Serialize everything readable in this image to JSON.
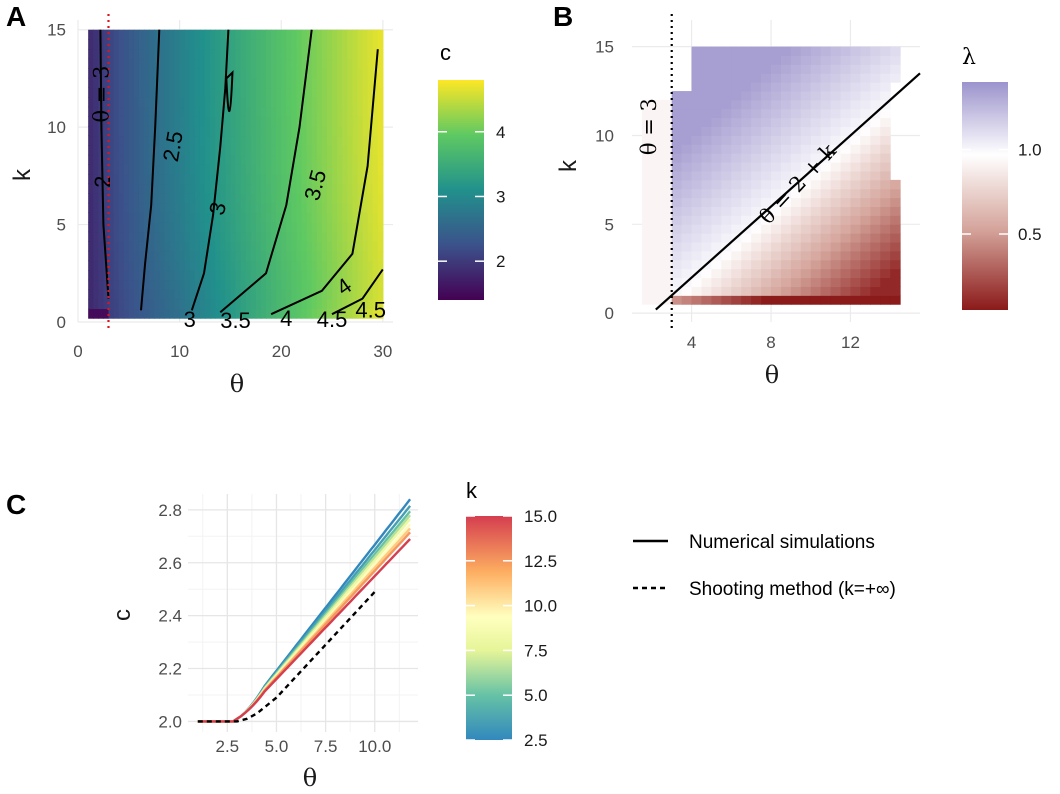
{
  "chart_data": [
    {
      "panel": "A",
      "type": "heatmap",
      "xlabel": "θ",
      "ylabel": "k",
      "xlim": [
        0,
        31
      ],
      "ylim": [
        0,
        15.5
      ],
      "xticks": [
        "0",
        "10",
        "20",
        "30"
      ],
      "xtick_values": [
        0,
        10,
        20,
        30
      ],
      "yticks": [
        "0",
        "5",
        "10",
        "15"
      ],
      "ytick_values": [
        0,
        5,
        10,
        15
      ],
      "theta_range": [
        1,
        30
      ],
      "k_range": [
        0.2,
        15
      ],
      "legend": {
        "title": "c",
        "ticks": [
          "2",
          "3",
          "4"
        ],
        "tick_values": [
          2,
          3,
          4
        ],
        "range": [
          1.4,
          4.8
        ],
        "palette": "viridis"
      },
      "reference_line": {
        "label": "θ = 3",
        "x": 3,
        "color": "#e0141f"
      },
      "contours": [
        {
          "level": 2,
          "label": "2",
          "points": [
            [
              3,
              1.2
            ],
            [
              2.5,
              5
            ],
            [
              2.3,
              10
            ],
            [
              2.2,
              15
            ]
          ]
        },
        {
          "level": 2.5,
          "label": "2.5",
          "points": [
            [
              6.2,
              0.6
            ],
            [
              6.6,
              3
            ],
            [
              7.2,
              6
            ],
            [
              7.6,
              10
            ],
            [
              8,
              15
            ]
          ]
        },
        {
          "level": 3,
          "label": "3",
          "points": [
            [
              11.2,
              0.6
            ],
            [
              12.4,
              2.5
            ],
            [
              13.3,
              5.5
            ],
            [
              14,
              9
            ],
            [
              14.5,
              12
            ],
            [
              14.8,
              15
            ]
          ]
        },
        {
          "level": 3.5,
          "label": "3.5",
          "points": [
            [
              14,
              0.5
            ],
            [
              18.5,
              2.5
            ],
            [
              20.5,
              6
            ],
            [
              21.8,
              10
            ],
            [
              23,
              15
            ]
          ]
        },
        {
          "level": 4,
          "label": "4",
          "points": [
            [
              19,
              0.4
            ],
            [
              24,
              1.6
            ],
            [
              27,
              3.5
            ],
            [
              28.5,
              8
            ],
            [
              29.5,
              14
            ]
          ]
        },
        {
          "level": 4.5,
          "label": "4.5",
          "points": [
            [
              25,
              0.4
            ],
            [
              28,
              1.2
            ],
            [
              30,
              2.7
            ]
          ]
        }
      ],
      "contour_labels_bottom": [
        "3",
        "3.5",
        "4",
        "4.5",
        "4",
        "4.5"
      ]
    },
    {
      "panel": "B",
      "type": "heatmap",
      "xlabel": "θ",
      "ylabel": "k",
      "xlim": [
        1,
        15.5
      ],
      "ylim": [
        -0.5,
        16.5
      ],
      "xticks": [
        "4",
        "8",
        "12"
      ],
      "xtick_values": [
        4,
        8,
        12
      ],
      "yticks": [
        "0",
        "5",
        "10",
        "15"
      ],
      "ytick_values": [
        0,
        5,
        10,
        15
      ],
      "legend": {
        "title": "λ",
        "ticks": [
          "0.5",
          "1.0"
        ],
        "tick_values": [
          0.5,
          1.0
        ],
        "range": [
          0.05,
          1.4
        ],
        "palette": "red-white-purple"
      },
      "reference_line": {
        "label": "θ = 3",
        "x": 3
      },
      "boundary_line": {
        "label": "θ = 2 + k",
        "slope": 1,
        "intercept": -2
      }
    },
    {
      "panel": "C",
      "type": "line",
      "xlabel": "θ",
      "ylabel": "c",
      "xlim": [
        0.5,
        12.2
      ],
      "ylim": [
        1.96,
        2.86
      ],
      "xticks": [
        "2.5",
        "5.0",
        "7.5",
        "10.0"
      ],
      "xtick_values": [
        2.5,
        5.0,
        7.5,
        10.0
      ],
      "yticks": [
        "2.0",
        "2.2",
        "2.4",
        "2.6",
        "2.8"
      ],
      "ytick_values": [
        2.0,
        2.2,
        2.4,
        2.6,
        2.8
      ],
      "colorbar": {
        "title": "k",
        "ticks": [
          "2.5",
          "5.0",
          "7.5",
          "10.0",
          "12.5",
          "15.0"
        ],
        "tick_values": [
          2.5,
          5.0,
          7.5,
          10.0,
          12.5,
          15.0
        ],
        "range": [
          2.5,
          15
        ],
        "palette": "spectral"
      },
      "series_k": [
        2.5,
        3.5,
        5.0,
        6.5,
        8.0,
        9.5,
        11.0,
        12.5,
        15.0
      ],
      "series_end_values": [
        2.84,
        2.815,
        2.795,
        2.78,
        2.765,
        2.745,
        2.73,
        2.715,
        2.69
      ],
      "shooting_method": {
        "x": [
          1.0,
          2.0,
          2.5,
          3.0,
          3.5,
          4.0,
          5.0,
          6.0,
          7.0,
          8.0,
          9.0,
          10.0
        ],
        "y": [
          2.0,
          2.0,
          2.0,
          2.0,
          2.01,
          2.03,
          2.09,
          2.17,
          2.25,
          2.33,
          2.41,
          2.49
        ]
      }
    }
  ],
  "panel_labels": [
    "A",
    "B",
    "C"
  ],
  "legend_lines": {
    "solid": "Numerical simulations",
    "dashed": "Shooting method (k=+∞)"
  }
}
